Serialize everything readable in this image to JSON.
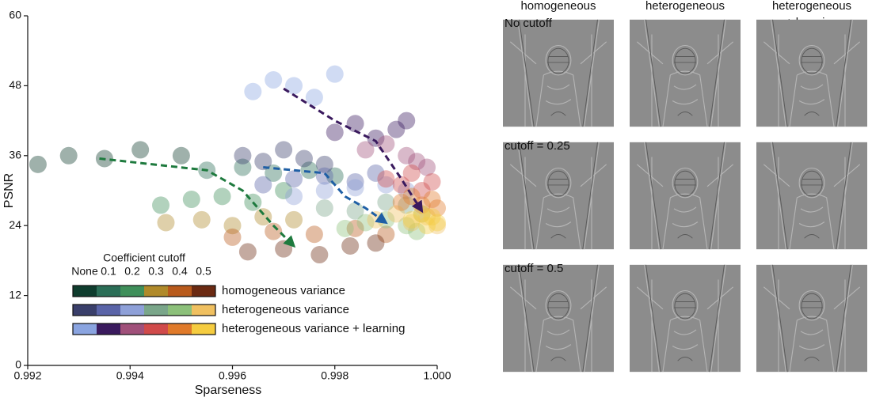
{
  "chart_data": {
    "type": "scatter",
    "xlabel": "Sparseness",
    "ylabel": "PSNR",
    "xlim": [
      0.992,
      1.0
    ],
    "xticks": [
      0.992,
      0.994,
      0.996,
      0.998,
      {
        "value": 1.0,
        "label": "1.000"
      }
    ],
    "ylim": [
      0,
      60
    ],
    "yticks": [
      0,
      12,
      24,
      36,
      48,
      60
    ],
    "legend_title": "Coefficient cutoff",
    "cutoffs": [
      "None",
      "0.1",
      "0.2",
      "0.3",
      "0.4",
      "0.5"
    ],
    "groups": [
      {
        "name": "homogeneous variance",
        "color": "#1e7a3e",
        "cutoff_colors": [
          "#0f3d2e",
          "#2b6e57",
          "#3f8f5a",
          "#b08a2a",
          "#b85a1c",
          "#6b2a12"
        ],
        "clusters": [
          {
            "x": [
              0.9922,
              0.9928,
              0.9935,
              0.9942,
              0.995
            ],
            "y": [
              34.5,
              36,
              35.5,
              37,
              36
            ]
          },
          {
            "x": [
              0.9955,
              0.9962,
              0.9968,
              0.9975,
              0.998
            ],
            "y": [
              33.5,
              34,
              33,
              33.5,
              32.5
            ]
          },
          {
            "x": [
              0.9946,
              0.9952,
              0.9958,
              0.9964,
              0.997
            ],
            "y": [
              27.5,
              28.5,
              29,
              28,
              30
            ]
          },
          {
            "x": [
              0.9947,
              0.9954,
              0.996,
              0.9966,
              0.9972
            ],
            "y": [
              24.5,
              25,
              24,
              25.5,
              25
            ]
          },
          {
            "x": [
              0.996,
              0.9968,
              0.9976,
              0.9984,
              0.999
            ],
            "y": [
              22,
              23,
              22.5,
              23.5,
              22.5
            ]
          },
          {
            "x": [
              0.9963,
              0.997,
              0.9977,
              0.9983,
              0.9988
            ],
            "y": [
              19.5,
              20,
              19,
              20.5,
              21
            ]
          }
        ],
        "path": {
          "x": [
            0.9934,
            0.9955,
            0.9962,
            0.9968,
            0.9972
          ],
          "y": [
            35.5,
            33.5,
            30,
            24,
            20.5
          ]
        }
      },
      {
        "name": "heterogeneous variance",
        "color": "#1f5fa5",
        "cutoff_colors": [
          "#3a3f6b",
          "#5a64a8",
          "#8ea0d8",
          "#7aa68a",
          "#8cc07a",
          "#f0c060"
        ],
        "clusters": [
          {
            "x": [
              0.9962,
              0.9966,
              0.997,
              0.9974,
              0.9978
            ],
            "y": [
              36,
              35,
              37,
              35.5,
              34.5
            ]
          },
          {
            "x": [
              0.9966,
              0.9972,
              0.9978,
              0.9984,
              0.9988
            ],
            "y": [
              31,
              32,
              32.5,
              31.5,
              33
            ]
          },
          {
            "x": [
              0.9972,
              0.9978,
              0.9984,
              0.999,
              0.9994
            ],
            "y": [
              29,
              30,
              30.5,
              31,
              30
            ]
          },
          {
            "x": [
              0.9978,
              0.9984,
              0.999,
              0.9994,
              0.9997
            ],
            "y": [
              27,
              26.5,
              28,
              27.5,
              26
            ]
          },
          {
            "x": [
              0.9982,
              0.9986,
              0.999,
              0.9994,
              0.9996
            ],
            "y": [
              23.5,
              24.5,
              25,
              24,
              23
            ]
          },
          {
            "x": [
              0.9988,
              0.9992,
              0.9995,
              0.9998,
              1.0
            ],
            "y": [
              25,
              26,
              24.5,
              25.5,
              24
            ]
          }
        ],
        "path": {
          "x": [
            0.9966,
            0.9978,
            0.9982,
            0.9986,
            0.999
          ],
          "y": [
            34,
            33,
            29,
            27,
            24.5
          ]
        }
      },
      {
        "name": "heterogeneous variance + learning",
        "color": "#3a1a5e",
        "cutoff_colors": [
          "#8aa4e0",
          "#3a1a5e",
          "#a0507a",
          "#d04a4a",
          "#e07a2a",
          "#f5cc40"
        ],
        "clusters": [
          {
            "x": [
              0.9964,
              0.9968,
              0.9972,
              0.9976,
              0.998
            ],
            "y": [
              47,
              49,
              48,
              46,
              50
            ]
          },
          {
            "x": [
              0.998,
              0.9984,
              0.9988,
              0.9992,
              0.9994
            ],
            "y": [
              40,
              41.5,
              39,
              40.5,
              42
            ]
          },
          {
            "x": [
              0.9986,
              0.999,
              0.9994,
              0.9996,
              0.9998
            ],
            "y": [
              37,
              38,
              36,
              35,
              34
            ]
          },
          {
            "x": [
              0.999,
              0.9993,
              0.9995,
              0.9997,
              0.9999
            ],
            "y": [
              32,
              31,
              33,
              30,
              31.5
            ]
          },
          {
            "x": [
              0.9993,
              0.9995,
              0.9997,
              0.9999,
              1.0
            ],
            "y": [
              28,
              29,
              27.5,
              28.5,
              27
            ]
          },
          {
            "x": [
              0.9995,
              0.9997,
              0.9998,
              0.9999,
              1.0
            ],
            "y": [
              25,
              26,
              24,
              25.5,
              24.5
            ]
          }
        ],
        "path": {
          "x": [
            0.997,
            0.998,
            0.9988,
            0.9993,
            0.9997
          ],
          "y": [
            47.5,
            42,
            38.5,
            32,
            26.5
          ]
        }
      }
    ]
  },
  "panels": {
    "columns": [
      {
        "lines": [
          "homogeneous"
        ],
        "color": "#1e7a3e"
      },
      {
        "lines": [
          "heterogeneous"
        ],
        "color": "#1f5fa5"
      },
      {
        "lines": [
          "heterogeneous",
          "+ learning"
        ],
        "color": "#4a1f6b"
      }
    ],
    "rows": [
      "No cutoff",
      "cutoff = 0.25",
      "cutoff = 0.5"
    ]
  }
}
